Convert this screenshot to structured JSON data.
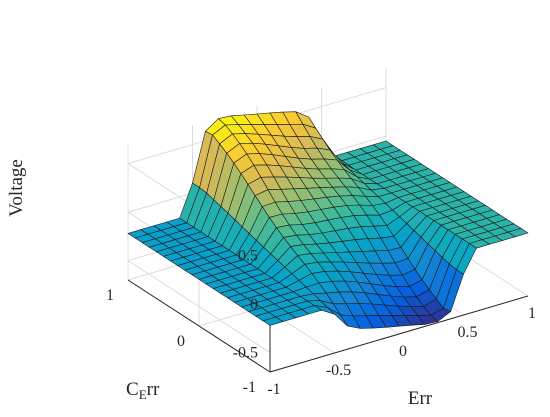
{
  "chart_data": {
    "type": "surface",
    "title": "",
    "xlabel": "Err",
    "ylabel_main": "C",
    "ylabel_sub": "E",
    "ylabel_tail": "rr",
    "zlabel": "Voltage",
    "xlim": [
      -1,
      1
    ],
    "ylim": [
      -1,
      1
    ],
    "zlim": [
      -0.7,
      0.7
    ],
    "x_ticks": [
      "-1",
      "-0.5",
      "0",
      "0.5",
      "1"
    ],
    "y_ticks": [
      "1",
      "0",
      "-1"
    ],
    "z_ticks": [
      "0.5",
      "0",
      "-0.5"
    ],
    "grid": "on",
    "colormap": "parula",
    "colormap_stops": [
      "#352a87",
      "#0363e1",
      "#1485d4",
      "#06a7c6",
      "#38b99e",
      "#92bf73",
      "#d9ba56",
      "#fcce2e",
      "#f9fb0e"
    ],
    "x": [
      -1,
      -0.8,
      -0.6,
      -0.4,
      -0.2,
      0,
      0.2,
      0.4,
      0.6,
      0.8,
      1
    ],
    "y": [
      -1,
      -0.8,
      -0.6,
      -0.4,
      -0.2,
      0,
      0.2,
      0.4,
      0.6,
      0.8,
      1
    ],
    "surface": "z = f(Err, CErr): flat at 0 (z=-0.22) for Err<=-0.6, rises to +0.7 plateau for Err in [-0.4,0] at CErr=1, falls to -0.7 floor for Err in [0,0.4] at CErr=-1, flat at 0 for Err>=0.6"
  }
}
